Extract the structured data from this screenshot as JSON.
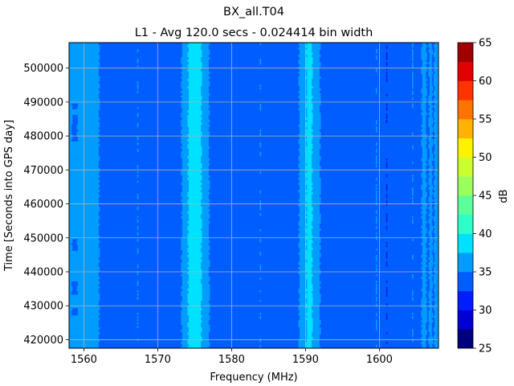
{
  "chart_data": {
    "type": "heatmap",
    "title": "BX_all.T04",
    "subtitle": "L1 - Avg 120.0 secs - 0.024414 bin width",
    "xlabel": "Frequency (MHz)",
    "ylabel": "Time [Seconds into GPS day]",
    "xlim": [
      1558.0,
      1608.0
    ],
    "ylim": [
      417500,
      507500
    ],
    "x_ticks": [
      1560,
      1570,
      1580,
      1590,
      1600
    ],
    "x_tick_labels": [
      "1560",
      "1570",
      "1580",
      "1590",
      "1600"
    ],
    "y_ticks": [
      420000,
      430000,
      440000,
      450000,
      460000,
      470000,
      480000,
      490000,
      500000
    ],
    "y_tick_labels": [
      "420000",
      "430000",
      "440000",
      "450000",
      "460000",
      "470000",
      "480000",
      "490000",
      "500000"
    ],
    "grid": true,
    "colorbar": {
      "label": "dB",
      "min": 25,
      "max": 65,
      "step": 2.5,
      "ticks": [
        25,
        30,
        35,
        40,
        45,
        50,
        55,
        60,
        65
      ],
      "tick_labels": [
        "25",
        "30",
        "35",
        "40",
        "45",
        "50",
        "55",
        "60",
        "65"
      ],
      "colors": [
        "#00007f",
        "#0000d5",
        "#001dff",
        "#005dff",
        "#009dff",
        "#00e1ff",
        "#2dffca",
        "#5dff9a",
        "#9aff5d",
        "#caff2d",
        "#fff200",
        "#ffb300",
        "#ff7300",
        "#ff3300",
        "#e30000",
        "#9f0000"
      ]
    },
    "background_level_db": 33.5,
    "bands": [
      {
        "x_start": 1558.0,
        "x_end": 1558.3,
        "db": 36
      },
      {
        "x_start": 1558.3,
        "x_end": 1559.2,
        "db": 36,
        "speckled": true
      },
      {
        "x_start": 1559.2,
        "x_end": 1562.0,
        "db": 36
      },
      {
        "x_start": 1573.3,
        "x_end": 1574.2,
        "db": 36
      },
      {
        "x_start": 1574.2,
        "x_end": 1576.0,
        "db": 38.5
      },
      {
        "x_start": 1576.0,
        "x_end": 1576.9,
        "db": 36
      },
      {
        "x_start": 1589.2,
        "x_end": 1590.2,
        "db": 36
      },
      {
        "x_start": 1590.2,
        "x_end": 1591.0,
        "db": 38.5
      },
      {
        "x_start": 1591.0,
        "x_end": 1591.9,
        "db": 36
      },
      {
        "x_start": 1605.8,
        "x_end": 1606.3,
        "db": 36
      },
      {
        "x_start": 1606.8,
        "x_end": 1607.1,
        "db": 36
      },
      {
        "x_start": 1607.5,
        "x_end": 1608.0,
        "db": 36
      }
    ],
    "spurs": [
      {
        "x": 1567.3,
        "db": 36
      },
      {
        "x": 1583.9,
        "db": 36
      },
      {
        "x": 1599.6,
        "db": 36
      },
      {
        "x": 1601.0,
        "db": 31
      },
      {
        "x": 1604.5,
        "db": 36
      }
    ]
  }
}
